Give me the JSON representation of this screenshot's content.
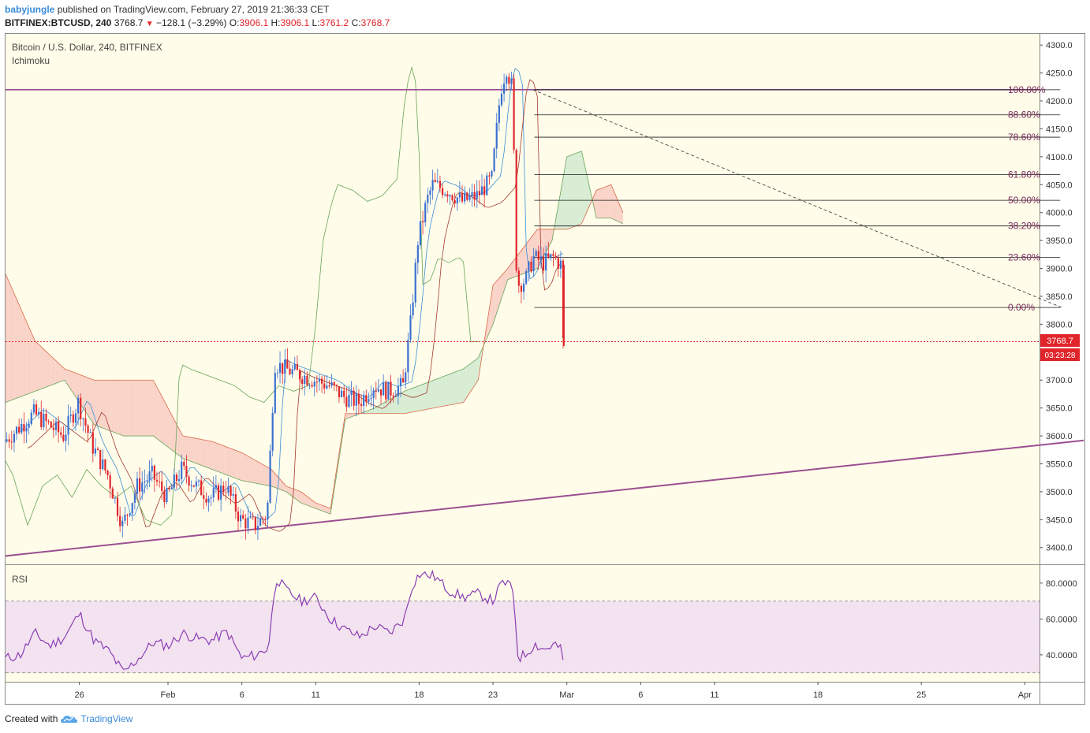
{
  "header": {
    "user": "babyjungle",
    "published": "published on TradingView.com, February 27, 2019 21:36:33 CET",
    "symbol": "BITFINEX:BTCUSD, 240",
    "last": "3768.7",
    "change": "−128.1 (−3.29%)",
    "o_label": "O:",
    "o": "3906.1",
    "h_label": "H:",
    "h": "3906.1",
    "l_label": "L:",
    "l": "3761.2",
    "c_label": "C:",
    "c": "3768.7"
  },
  "legend": {
    "title": "Bitcoin / U.S. Dollar, 240, BITFINEX",
    "indicator": "Ichimoku",
    "rsi": "RSI"
  },
  "price_badge": {
    "price": "3768.7",
    "countdown": "03:23:28"
  },
  "footer": {
    "created": "Created with",
    "brand": "TradingView"
  },
  "colors": {
    "bg": "#fffde9",
    "up": "#3a6fd1",
    "down": "#e0252b",
    "kumo_bull": "#d7ecd3",
    "kumo_bear": "#fad3c8",
    "trend": "#9a4f91",
    "rsi_band": "#f3e2ef",
    "rsi_line": "#8a3fb5"
  },
  "chart_data": {
    "type": "candlestick",
    "symbol": "BITFINEX:BTCUSD",
    "timeframe": "240",
    "price_axis": {
      "range": [
        3370,
        4320
      ],
      "ticks": [
        4300,
        4250,
        4200,
        4150,
        4100,
        4050,
        4000,
        3950,
        3900,
        3850,
        3800,
        3700,
        3650,
        3600,
        3550,
        3500,
        3450,
        3400
      ]
    },
    "time_axis": {
      "range_days": [
        0,
        70
      ],
      "labels": [
        {
          "day": 5,
          "label": "26"
        },
        {
          "day": 11,
          "label": "Feb"
        },
        {
          "day": 16,
          "label": "6"
        },
        {
          "day": 21,
          "label": "11"
        },
        {
          "day": 28,
          "label": "18"
        },
        {
          "day": 33,
          "label": "23"
        },
        {
          "day": 38,
          "label": "Mar"
        },
        {
          "day": 43,
          "label": "6"
        },
        {
          "day": 48,
          "label": "11"
        },
        {
          "day": 55,
          "label": "18"
        },
        {
          "day": 62,
          "label": "25"
        },
        {
          "day": 69,
          "label": "Apr"
        }
      ]
    },
    "price_path": [
      {
        "day": 0,
        "price": 3590
      },
      {
        "day": 2,
        "price": 3640
      },
      {
        "day": 4,
        "price": 3600
      },
      {
        "day": 5,
        "price": 3660
      },
      {
        "day": 6,
        "price": 3580
      },
      {
        "day": 7,
        "price": 3530
      },
      {
        "day": 8,
        "price": 3440
      },
      {
        "day": 9,
        "price": 3510
      },
      {
        "day": 10,
        "price": 3530
      },
      {
        "day": 11,
        "price": 3490
      },
      {
        "day": 12,
        "price": 3540
      },
      {
        "day": 13,
        "price": 3510
      },
      {
        "day": 14,
        "price": 3490
      },
      {
        "day": 15,
        "price": 3510
      },
      {
        "day": 16,
        "price": 3450
      },
      {
        "day": 17,
        "price": 3440
      },
      {
        "day": 17.8,
        "price": 3460
      },
      {
        "day": 18.3,
        "price": 3730
      },
      {
        "day": 19,
        "price": 3720
      },
      {
        "day": 20,
        "price": 3710
      },
      {
        "day": 21,
        "price": 3700
      },
      {
        "day": 22,
        "price": 3690
      },
      {
        "day": 23,
        "price": 3670
      },
      {
        "day": 24,
        "price": 3660
      },
      {
        "day": 25,
        "price": 3690
      },
      {
        "day": 26,
        "price": 3680
      },
      {
        "day": 27,
        "price": 3690
      },
      {
        "day": 27.5,
        "price": 3800
      },
      {
        "day": 28,
        "price": 3950
      },
      {
        "day": 28.6,
        "price": 4020
      },
      {
        "day": 29,
        "price": 4050
      },
      {
        "day": 30,
        "price": 4040
      },
      {
        "day": 31,
        "price": 4020
      },
      {
        "day": 32,
        "price": 4030
      },
      {
        "day": 33,
        "price": 4060
      },
      {
        "day": 33.6,
        "price": 4220
      },
      {
        "day": 34,
        "price": 4260
      },
      {
        "day": 34.4,
        "price": 4220
      },
      {
        "day": 34.7,
        "price": 3870
      },
      {
        "day": 35.3,
        "price": 3880
      },
      {
        "day": 35.8,
        "price": 3920
      },
      {
        "day": 36.5,
        "price": 3910
      },
      {
        "day": 37.2,
        "price": 3920
      },
      {
        "day": 37.7,
        "price": 3906
      },
      {
        "day": 37.8,
        "price": 3768.7
      }
    ],
    "ichimoku": {
      "span_a": [
        [
          0,
          3660
        ],
        [
          2,
          3680
        ],
        [
          4,
          3700
        ],
        [
          6,
          3620
        ],
        [
          8,
          3600
        ],
        [
          10,
          3600
        ],
        [
          12,
          3560
        ],
        [
          14,
          3540
        ],
        [
          16,
          3520
        ],
        [
          18,
          3510
        ],
        [
          19,
          3500
        ],
        [
          20,
          3480
        ],
        [
          21,
          3470
        ],
        [
          22,
          3460
        ],
        [
          23,
          3630
        ],
        [
          25,
          3650
        ],
        [
          27,
          3680
        ],
        [
          29,
          3700
        ],
        [
          31,
          3720
        ],
        [
          32,
          3740
        ],
        [
          33,
          3800
        ],
        [
          34,
          3880
        ],
        [
          36,
          3900
        ],
        [
          37,
          3950
        ],
        [
          38,
          4100
        ],
        [
          39,
          4110
        ],
        [
          40,
          3990
        ],
        [
          41,
          3990
        ],
        [
          41.8,
          3980
        ]
      ],
      "span_b": [
        [
          0,
          3890
        ],
        [
          2,
          3770
        ],
        [
          4,
          3720
        ],
        [
          6,
          3700
        ],
        [
          8,
          3700
        ],
        [
          10,
          3700
        ],
        [
          12,
          3600
        ],
        [
          14,
          3590
        ],
        [
          16,
          3570
        ],
        [
          18,
          3540
        ],
        [
          19,
          3510
        ],
        [
          20,
          3500
        ],
        [
          21,
          3480
        ],
        [
          22,
          3470
        ],
        [
          23,
          3640
        ],
        [
          25,
          3640
        ],
        [
          27,
          3640
        ],
        [
          29,
          3650
        ],
        [
          31,
          3660
        ],
        [
          32,
          3700
        ],
        [
          33,
          3870
        ],
        [
          34,
          3900
        ],
        [
          36,
          3970
        ],
        [
          37,
          3970
        ],
        [
          38,
          3970
        ],
        [
          39,
          3980
        ],
        [
          40,
          4040
        ],
        [
          41,
          4050
        ],
        [
          41.8,
          4000
        ]
      ]
    },
    "fibonacci": [
      {
        "level": "100.00%",
        "price": 4220
      },
      {
        "level": "88.60%",
        "price": 4175
      },
      {
        "level": "78.60%",
        "price": 4135
      },
      {
        "level": "61.80%",
        "price": 4068
      },
      {
        "level": "50.00%",
        "price": 4022
      },
      {
        "level": "38.20%",
        "price": 3976
      },
      {
        "level": "23.60%",
        "price": 3920
      },
      {
        "level": "0.00%",
        "price": 3830
      }
    ],
    "horizontal_levels": [
      {
        "price": 4220,
        "style": "solid"
      },
      {
        "price": 3768.7,
        "style": "dotted"
      }
    ],
    "trendline": {
      "from": {
        "day": 0,
        "price": 3385
      },
      "to": {
        "day": 73,
        "price": 3592
      }
    },
    "dashed_line": {
      "from": {
        "day": 35.7,
        "price": 4220
      },
      "to": {
        "day": 71.5,
        "price": 3830
      }
    },
    "rsi": {
      "range": [
        25,
        90
      ],
      "ticks": [
        80,
        60,
        40
      ],
      "band": [
        30,
        70
      ],
      "values": [
        [
          0,
          38
        ],
        [
          1,
          40
        ],
        [
          2,
          52
        ],
        [
          3,
          45
        ],
        [
          4,
          50
        ],
        [
          5,
          63
        ],
        [
          6,
          48
        ],
        [
          7,
          42
        ],
        [
          8,
          30
        ],
        [
          9,
          38
        ],
        [
          10,
          47
        ],
        [
          11,
          45
        ],
        [
          12,
          52
        ],
        [
          13,
          49
        ],
        [
          14,
          48
        ],
        [
          15,
          53
        ],
        [
          16,
          38
        ],
        [
          17,
          40
        ],
        [
          17.8,
          44
        ],
        [
          18.3,
          83
        ],
        [
          19,
          76
        ],
        [
          20,
          70
        ],
        [
          21,
          72
        ],
        [
          22,
          60
        ],
        [
          23,
          54
        ],
        [
          24,
          50
        ],
        [
          25,
          56
        ],
        [
          26,
          52
        ],
        [
          27,
          60
        ],
        [
          27.5,
          78
        ],
        [
          28,
          85
        ],
        [
          29,
          84
        ],
        [
          30,
          76
        ],
        [
          31,
          72
        ],
        [
          32,
          74
        ],
        [
          33,
          70
        ],
        [
          33.6,
          80
        ],
        [
          34,
          80
        ],
        [
          34.4,
          74
        ],
        [
          34.7,
          38
        ],
        [
          35.3,
          41
        ],
        [
          35.8,
          46
        ],
        [
          36.5,
          43
        ],
        [
          37.2,
          46
        ],
        [
          37.7,
          42
        ],
        [
          37.8,
          30
        ]
      ]
    }
  }
}
